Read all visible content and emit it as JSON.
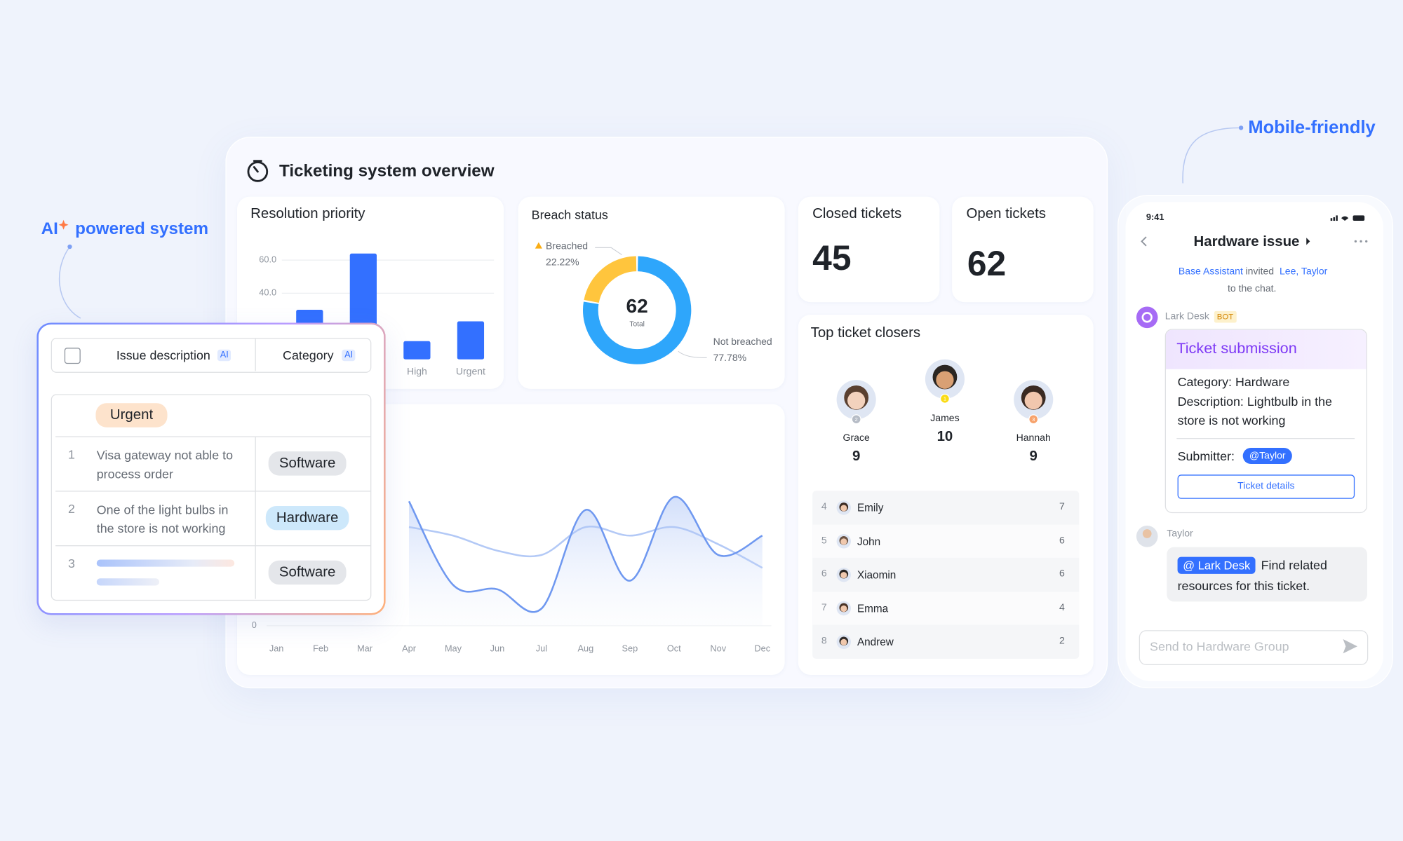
{
  "callouts": {
    "ai": "AI",
    "ai_text": "powered system",
    "mobile": "Mobile-friendly"
  },
  "dashboard": {
    "title": "Ticketing system overview",
    "resolution_priority": {
      "type": "bar",
      "title": "Resolution priority",
      "categories": [
        null,
        null,
        "High",
        "Urgent"
      ],
      "values": [
        30,
        64,
        11,
        23
      ],
      "color": "#3370ff",
      "ylim": [
        0,
        70
      ],
      "yticks": [
        {
          "value": 40,
          "label": "40.0"
        },
        {
          "value": 60,
          "label": "60.0"
        }
      ],
      "grid": true
    },
    "breach_status": {
      "type": "pie",
      "title": "Breach status",
      "categories": [
        "Breached",
        "Not breached"
      ],
      "values": [
        22.22,
        77.78
      ],
      "value_labels": [
        "22.22%",
        "77.78%"
      ],
      "colors": [
        "#ffc53d",
        "#2ea6fb"
      ],
      "total": 62,
      "total_label": "Total"
    },
    "closed_tickets": {
      "label": "Closed tickets",
      "value": 45
    },
    "open_tickets": {
      "label": "Open tickets",
      "value": 62
    },
    "top_closers": {
      "title": "Top ticket closers",
      "podium": [
        {
          "rank": 2,
          "name": "Grace",
          "value": 9
        },
        {
          "rank": 1,
          "name": "James",
          "value": 10
        },
        {
          "rank": 3,
          "name": "Hannah",
          "value": 9
        }
      ],
      "list": [
        {
          "rank": 4,
          "name": "Emily",
          "value": 7
        },
        {
          "rank": 5,
          "name": "John",
          "value": 6
        },
        {
          "rank": 6,
          "name": "Xiaomin",
          "value": 6
        },
        {
          "rank": 7,
          "name": "Emma",
          "value": 4
        },
        {
          "rank": 8,
          "name": "Andrew",
          "value": 2
        }
      ]
    },
    "trend": {
      "type": "line",
      "categories": [
        "Jan",
        "Feb",
        "Mar",
        "Apr",
        "May",
        "Jun",
        "Jul",
        "Aug",
        "Sep",
        "Oct",
        "Nov",
        "Dec"
      ],
      "ylim": [
        0,
        100
      ],
      "yticks": [
        0
      ],
      "series": [
        {
          "color": "#6f98f0",
          "values": [
            null,
            null,
            null,
            58,
            19,
            17,
            8,
            54,
            21,
            60,
            33,
            42
          ]
        },
        {
          "color": "#b3c9f6",
          "values": [
            null,
            null,
            null,
            46,
            42,
            35,
            33,
            46,
            42,
            46,
            38,
            27
          ]
        }
      ]
    }
  },
  "table": {
    "columns": [
      {
        "label": "Issue description",
        "badge": "AI"
      },
      {
        "label": "Category",
        "badge": "AI"
      }
    ],
    "group": "Urgent",
    "rows": [
      {
        "index": 1,
        "description": "Visa gateway not able to process order",
        "category": "Software"
      },
      {
        "index": 2,
        "description": "One of the light bulbs in the store is not working",
        "category": "Hardware"
      },
      {
        "index": 3,
        "category": "Software"
      }
    ]
  },
  "phone": {
    "time": "9:41",
    "title": "Hardware issue",
    "system": {
      "actor": "Base Assistant",
      "verb": "invited",
      "invitees": "Lee, Taylor",
      "tail": "to the chat."
    },
    "bot": {
      "name": "Lark Desk",
      "badge": "BOT"
    },
    "card": {
      "title": "Ticket submission",
      "category": "Category: Hardware",
      "description": "Description: Lightbulb in the store is not working",
      "submitter_label": "Submitter:",
      "submitter": "@Taylor",
      "button": "Ticket details"
    },
    "reply": {
      "sender": "Taylor",
      "mention": "@ Lark Desk",
      "text": "Find related resources for this ticket."
    },
    "input_placeholder": "Send to Hardware Group"
  }
}
